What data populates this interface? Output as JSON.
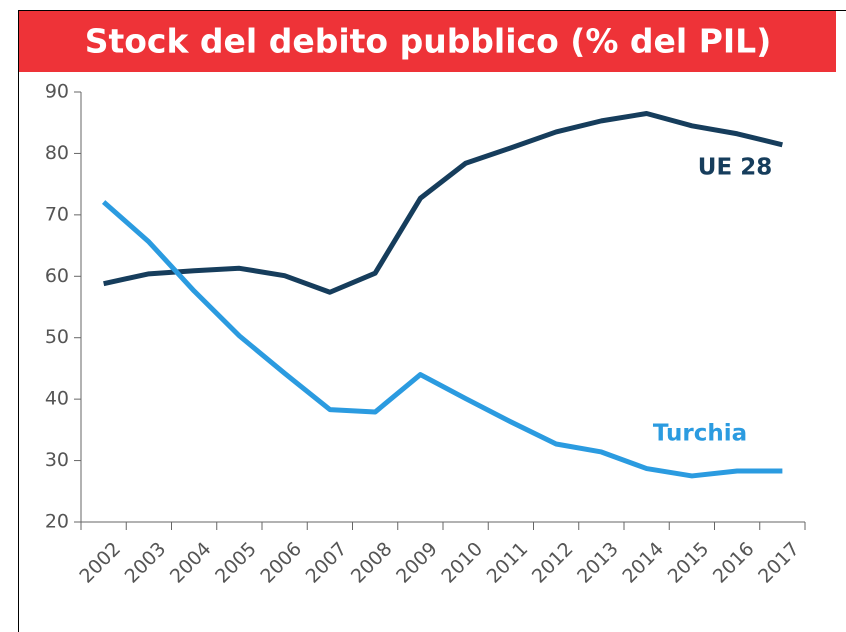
{
  "chart_data": {
    "type": "line",
    "title": "Stock del debito pubblico (% del PIL)",
    "categories": [
      "2002",
      "2003",
      "2004",
      "2005",
      "2006",
      "2007",
      "2008",
      "2009",
      "2010",
      "2011",
      "2012",
      "2013",
      "2014",
      "2015",
      "2016",
      "2017"
    ],
    "series": [
      {
        "name": "UE 28",
        "color": "#163d5c",
        "values": [
          58.8,
          60.4,
          60.9,
          61.3,
          60.1,
          57.4,
          60.5,
          72.7,
          78.4,
          80.9,
          83.5,
          85.3,
          86.5,
          84.5,
          83.2,
          81.4
        ]
      },
      {
        "name": "Turchia",
        "color": "#2b9be0",
        "values": [
          72.1,
          65.6,
          57.6,
          50.3,
          44.2,
          38.3,
          37.9,
          44.0,
          40.1,
          36.3,
          32.7,
          31.4,
          28.7,
          27.5,
          28.3,
          28.3
        ]
      }
    ],
    "ylim": [
      20,
      90
    ],
    "yticks": [
      20,
      30,
      40,
      50,
      60,
      70,
      80,
      90
    ],
    "grid": false
  }
}
